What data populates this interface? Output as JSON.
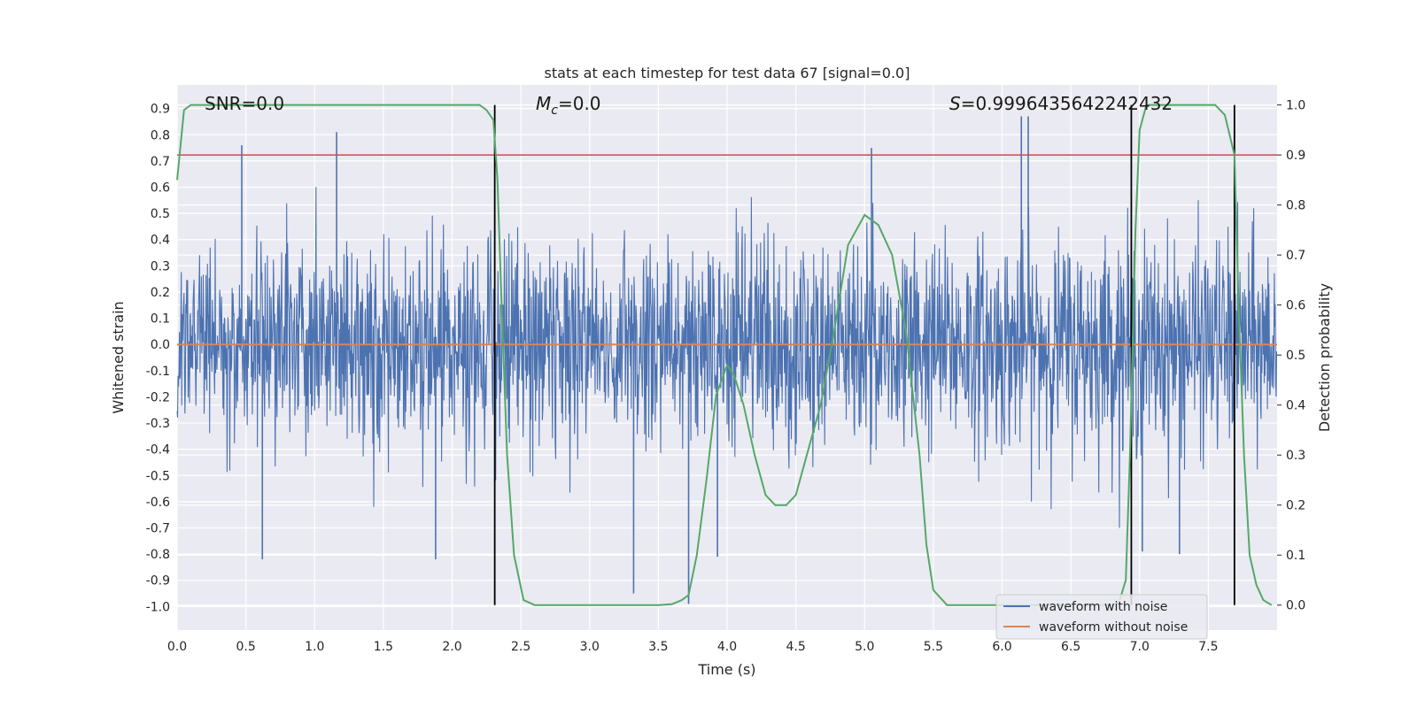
{
  "chart_data": {
    "type": "line",
    "title": "stats at each timestep for test data 67 [signal=0.0]",
    "xlabel": "Time (s)",
    "ylabel": "Whitened strain",
    "ylabel_right": "Detection probability",
    "xlim": [
      0.0,
      8.0
    ],
    "ylim": [
      -1.09,
      0.99
    ],
    "ylim_right": [
      -0.05,
      1.04
    ],
    "x_ticks": [
      "0.0",
      "0.5",
      "1.0",
      "1.5",
      "2.0",
      "2.5",
      "3.0",
      "3.5",
      "4.0",
      "4.5",
      "5.0",
      "5.5",
      "6.0",
      "6.5",
      "7.0",
      "7.5"
    ],
    "y_ticks": [
      "0.9",
      "0.8",
      "0.7",
      "0.6",
      "0.5",
      "0.4",
      "0.3",
      "0.2",
      "0.1",
      "0.0",
      "-0.1",
      "-0.2",
      "-0.3",
      "-0.4",
      "-0.5",
      "-0.6",
      "-0.7",
      "-0.8",
      "-0.9",
      "-1.0"
    ],
    "y_ticks_right": [
      "1.0",
      "0.9",
      "0.8",
      "0.7",
      "0.6",
      "0.5",
      "0.4",
      "0.3",
      "0.2",
      "0.1",
      "0.0"
    ],
    "annotations": {
      "snr": "SNR=0.0",
      "mc_symbol": "M",
      "mc_sub": "c",
      "mc_value": "=0.0",
      "s_symbol": "S",
      "s_value": "=0.9996435642242432"
    },
    "threshold_right": 0.9,
    "vertical_lines_x": [
      2.31,
      6.94,
      7.69
    ],
    "series": [
      {
        "name": "waveform with noise",
        "color": "#4c72b0",
        "description": "noise trace",
        "spike_examples": [
          [
            0.47,
            0.76
          ],
          [
            0.62,
            -0.82
          ],
          [
            1.16,
            0.81
          ],
          [
            1.88,
            -0.82
          ],
          [
            3.32,
            -0.95
          ],
          [
            3.72,
            -0.99
          ],
          [
            3.93,
            -0.81
          ],
          [
            5.05,
            0.75
          ],
          [
            6.14,
            0.87
          ],
          [
            6.19,
            0.87
          ],
          [
            7.02,
            -0.79
          ],
          [
            7.29,
            -0.8
          ]
        ]
      },
      {
        "name": "waveform without noise",
        "color": "#dd8452",
        "x": [
          0.0,
          8.0
        ],
        "y": [
          0.0,
          0.0
        ]
      },
      {
        "name": "detection probability",
        "color": "#55a868",
        "axis": "right",
        "x": [
          0.0,
          0.05,
          0.1,
          0.15,
          0.5,
          1.0,
          1.5,
          2.0,
          2.1,
          2.2,
          2.25,
          2.3,
          2.33,
          2.36,
          2.4,
          2.45,
          2.52,
          2.6,
          2.8,
          3.0,
          3.5,
          3.6,
          3.67,
          3.72,
          3.78,
          3.85,
          3.92,
          4.0,
          4.05,
          4.12,
          4.2,
          4.28,
          4.35,
          4.43,
          4.5,
          4.58,
          4.68,
          4.78,
          4.88,
          5.0,
          5.1,
          5.2,
          5.3,
          5.4,
          5.45,
          5.5,
          5.6,
          6.0,
          6.5,
          6.8,
          6.85,
          6.9,
          6.93,
          6.97,
          7.0,
          7.05,
          7.1,
          7.15,
          7.3,
          7.55,
          7.62,
          7.69,
          7.72,
          7.76,
          7.8,
          7.85,
          7.9,
          7.96
        ],
        "y": [
          0.85,
          0.99,
          1.0,
          1.0,
          1.0,
          1.0,
          1.0,
          1.0,
          1.0,
          1.0,
          0.99,
          0.97,
          0.85,
          0.6,
          0.3,
          0.1,
          0.01,
          0.0,
          0.0,
          0.0,
          0.0,
          0.002,
          0.01,
          0.02,
          0.1,
          0.25,
          0.42,
          0.48,
          0.46,
          0.4,
          0.3,
          0.22,
          0.2,
          0.2,
          0.22,
          0.3,
          0.4,
          0.55,
          0.72,
          0.78,
          0.76,
          0.7,
          0.55,
          0.3,
          0.12,
          0.03,
          0.0,
          0.0,
          0.0,
          0.0,
          0.005,
          0.05,
          0.3,
          0.75,
          0.95,
          1.0,
          1.0,
          1.0,
          1.0,
          1.0,
          0.98,
          0.9,
          0.6,
          0.3,
          0.1,
          0.04,
          0.01,
          0.0
        ]
      }
    ],
    "legend": [
      "waveform with noise",
      "waveform without noise"
    ],
    "legend_location": "lower-right",
    "colors": {
      "plot_bg": "#eaeaf2",
      "grid": "#ffffff",
      "threshold": "#c44e52",
      "vline": "#000000"
    }
  }
}
